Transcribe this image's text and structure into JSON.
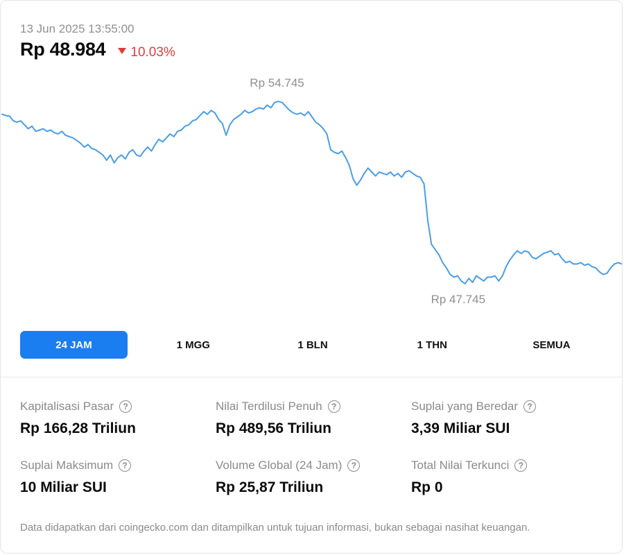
{
  "header": {
    "timestamp": "13 Jun 2025 13:55:00",
    "price": "Rp 48.984",
    "change": "10.03%",
    "change_direction": "down",
    "change_color": "#e03b3b"
  },
  "chart_data": {
    "type": "line",
    "title": "",
    "xlabel": "",
    "ylabel": "",
    "line_color": "#4a9de6",
    "high_label": "Rp 54.745",
    "low_label": "Rp 47.745",
    "ylim": [
      47745,
      54745
    ],
    "values": [
      54250,
      54200,
      54180,
      54000,
      53950,
      54000,
      53850,
      53700,
      53800,
      53600,
      53650,
      53700,
      53600,
      53650,
      53550,
      53500,
      53600,
      53450,
      53400,
      53350,
      53250,
      53150,
      53000,
      53100,
      52950,
      52900,
      52800,
      52700,
      52500,
      52700,
      52400,
      52600,
      52700,
      52550,
      52800,
      52900,
      52700,
      52650,
      52850,
      53000,
      52850,
      53100,
      53300,
      53200,
      53350,
      53500,
      53400,
      53600,
      53650,
      53800,
      53850,
      54000,
      54050,
      54200,
      54350,
      54250,
      54400,
      54300,
      54050,
      53900,
      53450,
      53850,
      54050,
      54150,
      54250,
      54400,
      54300,
      54350,
      54450,
      54500,
      54450,
      54600,
      54500,
      54700,
      54740,
      54700,
      54550,
      54400,
      54300,
      54250,
      54300,
      54200,
      54350,
      54150,
      53950,
      53850,
      53700,
      53500,
      52900,
      52800,
      52750,
      52850,
      52600,
      52300,
      51800,
      51550,
      51750,
      52000,
      52200,
      52050,
      51900,
      52050,
      52000,
      51950,
      52050,
      51900,
      52000,
      51850,
      52050,
      52100,
      52000,
      51900,
      51850,
      51600,
      50200,
      49300,
      49100,
      48900,
      48600,
      48400,
      48150,
      48050,
      48100,
      47900,
      47800,
      48000,
      47850,
      48100,
      48000,
      47900,
      48050,
      48050,
      48100,
      47900,
      48100,
      48450,
      48700,
      48900,
      49050,
      48950,
      49050,
      49000,
      48800,
      48750,
      48850,
      48950,
      49000,
      49050,
      48900,
      48950,
      48750,
      48600,
      48650,
      48550,
      48550,
      48600,
      48500,
      48550,
      48450,
      48400,
      48250,
      48150,
      48200,
      48400,
      48550,
      48600,
      48550
    ]
  },
  "ranges": [
    {
      "label": "24 JAM",
      "active": true
    },
    {
      "label": "1 MGG",
      "active": false
    },
    {
      "label": "1 BLN",
      "active": false
    },
    {
      "label": "1 THN",
      "active": false
    },
    {
      "label": "SEMUA",
      "active": false
    }
  ],
  "stats": [
    {
      "label": "Kapitalisasi Pasar",
      "value": "Rp 166,28 Triliun"
    },
    {
      "label": "Nilai Terdilusi Penuh",
      "value": "Rp 489,56 Triliun"
    },
    {
      "label": "Suplai yang Beredar",
      "value": "3,39 Miliar SUI"
    },
    {
      "label": "Suplai Maksimum",
      "value": "10 Miliar SUI"
    },
    {
      "label": "Volume Global (24 Jam)",
      "value": "Rp 25,87 Triliun"
    },
    {
      "label": "Total Nilai Terkunci",
      "value": "Rp 0"
    }
  ],
  "help_icon": "?",
  "disclaimer": "Data didapatkan dari coingecko.com dan ditampilkan untuk tujuan informasi, bukan sebagai nasihat keuangan."
}
